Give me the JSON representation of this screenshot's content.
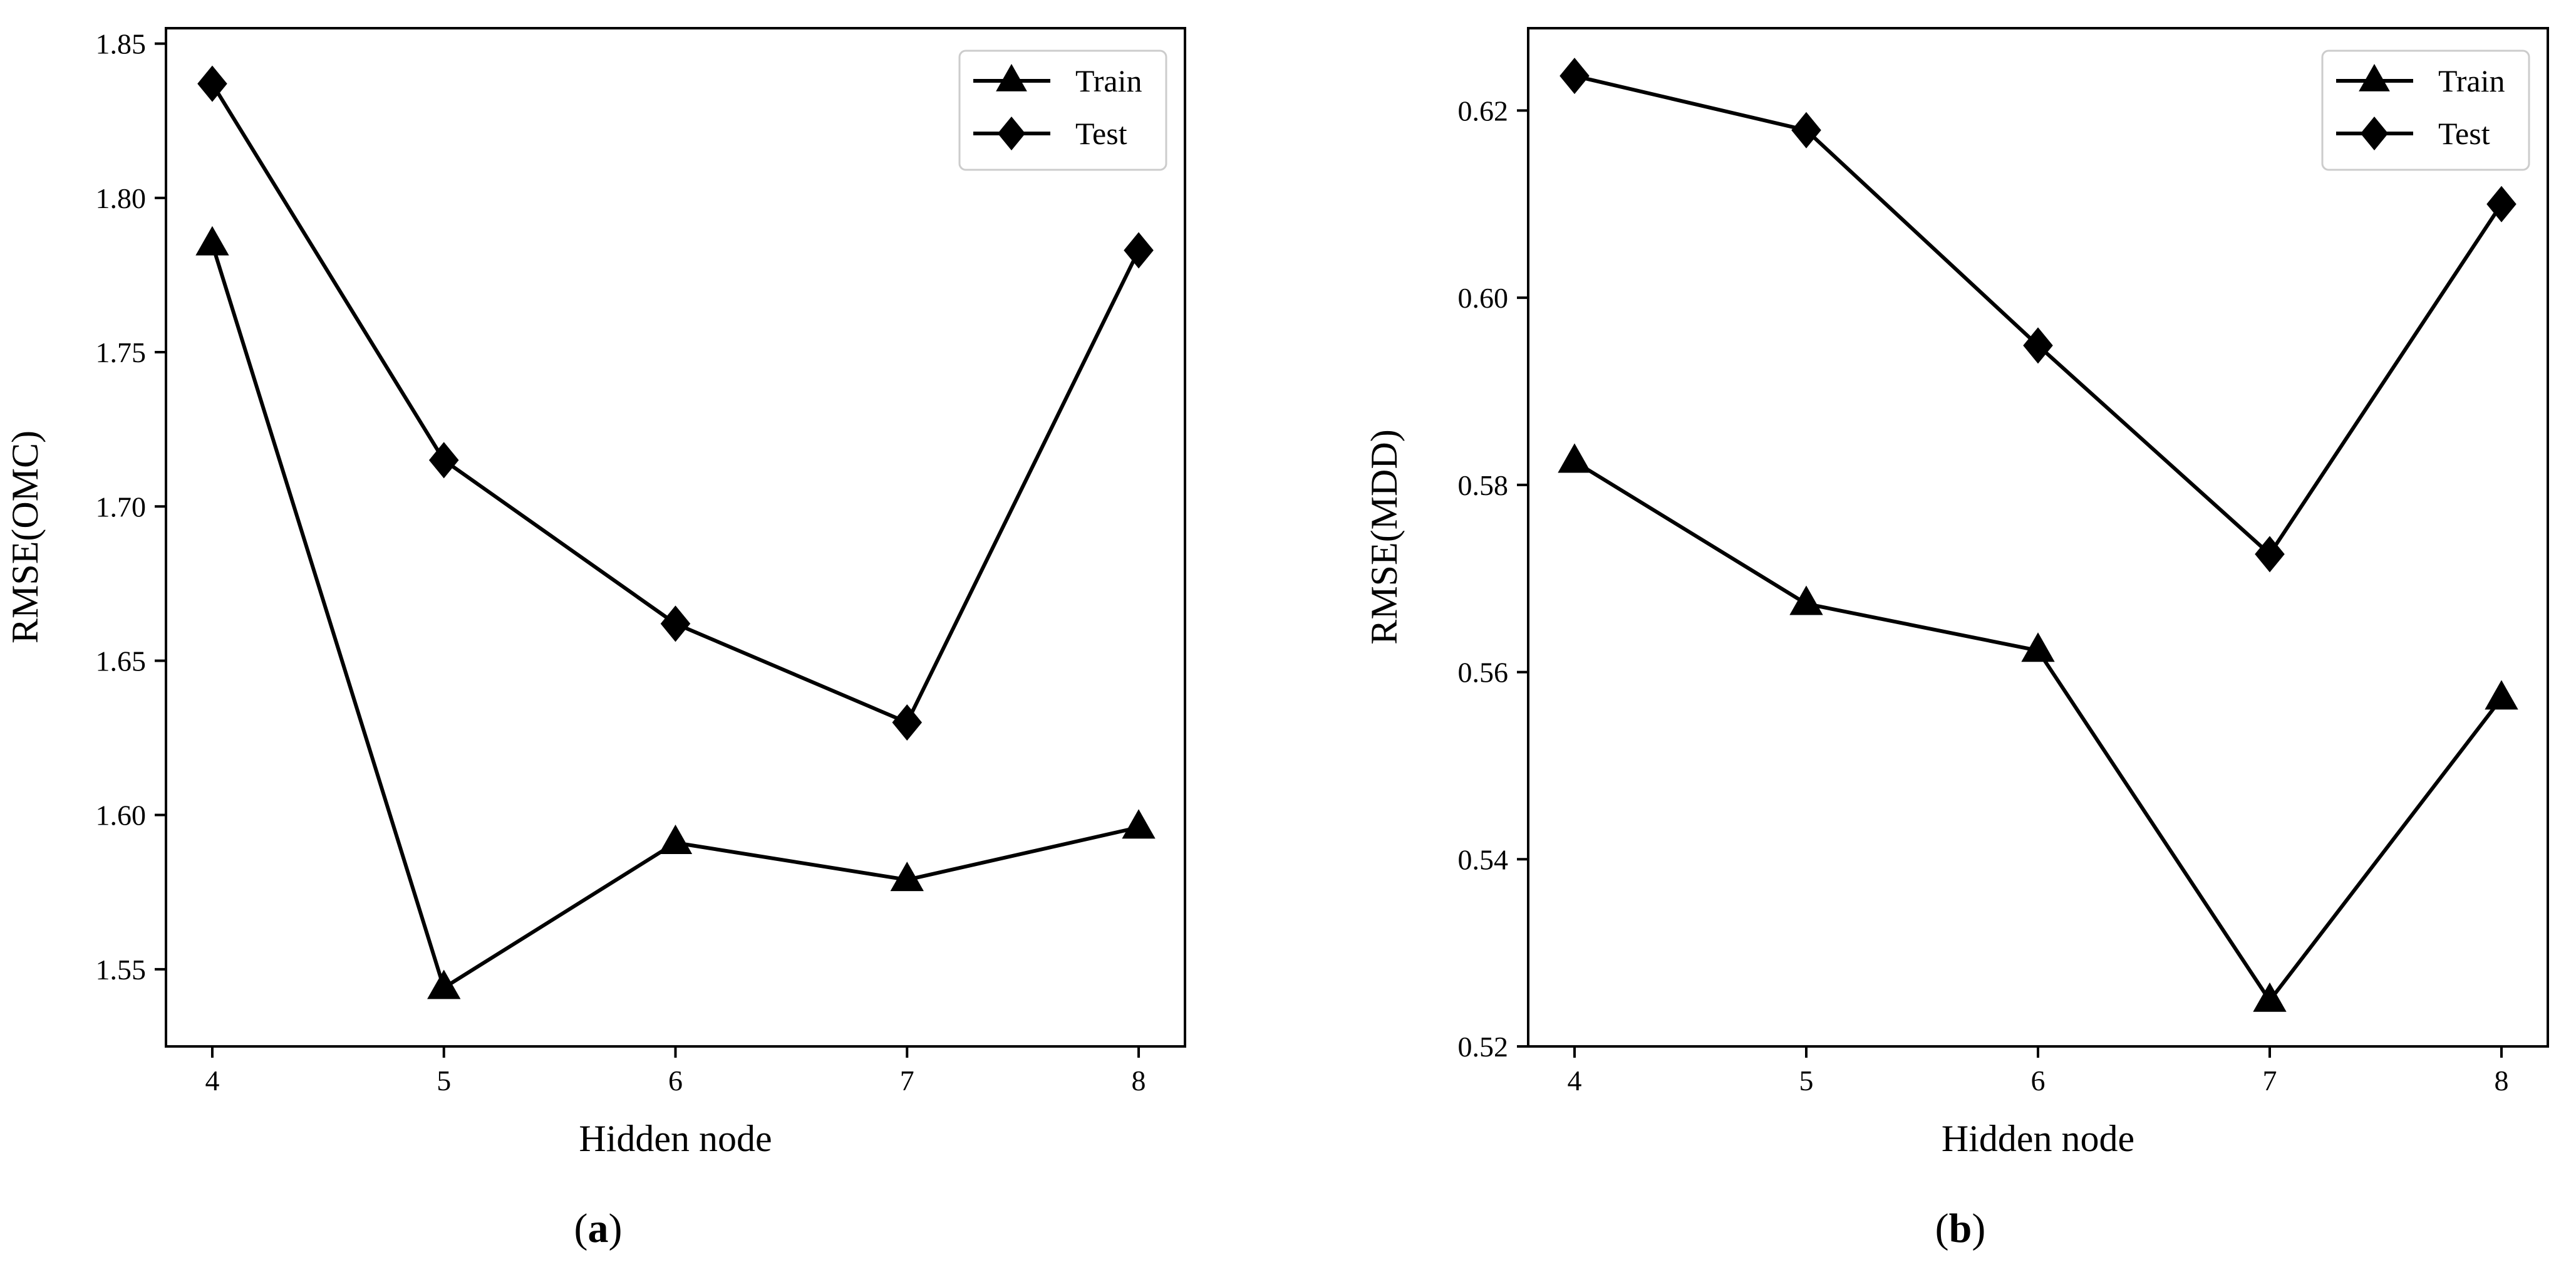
{
  "chart_data": [
    {
      "type": "line",
      "caption_letter": "a",
      "xlabel": "Hidden node",
      "ylabel": "RMSE(OMC)",
      "x": [
        4,
        5,
        6,
        7,
        8
      ],
      "xticks": [
        "4",
        "5",
        "6",
        "7",
        "8"
      ],
      "xlim": [
        3.8,
        8.2
      ],
      "ylim": [
        1.525,
        1.855
      ],
      "yticks": [
        "1.55",
        "1.60",
        "1.65",
        "1.70",
        "1.75",
        "1.80",
        "1.85"
      ],
      "legend_position": "top-right",
      "grid": false,
      "series": [
        {
          "name": "Train",
          "marker": "triangle",
          "values": [
            1.785,
            1.544,
            1.591,
            1.579,
            1.596
          ]
        },
        {
          "name": "Test",
          "marker": "diamond",
          "values": [
            1.837,
            1.715,
            1.662,
            1.63,
            1.783
          ]
        }
      ]
    },
    {
      "type": "line",
      "caption_letter": "b",
      "xlabel": "Hidden node",
      "ylabel": "RMSE(MDD)",
      "x": [
        4,
        5,
        6,
        7,
        8
      ],
      "xticks": [
        "4",
        "5",
        "6",
        "7",
        "8"
      ],
      "xlim": [
        3.8,
        8.2
      ],
      "ylim": [
        0.52,
        0.6288
      ],
      "yticks": [
        "0.52",
        "0.54",
        "0.56",
        "0.58",
        "0.60",
        "0.62"
      ],
      "legend_position": "top-right",
      "grid": false,
      "series": [
        {
          "name": "Train",
          "marker": "triangle",
          "values": [
            0.5825,
            0.5673,
            0.5623,
            0.5249,
            0.5572
          ]
        },
        {
          "name": "Test",
          "marker": "diamond",
          "values": [
            0.6237,
            0.6179,
            0.5949,
            0.5726,
            0.61
          ]
        }
      ]
    }
  ]
}
